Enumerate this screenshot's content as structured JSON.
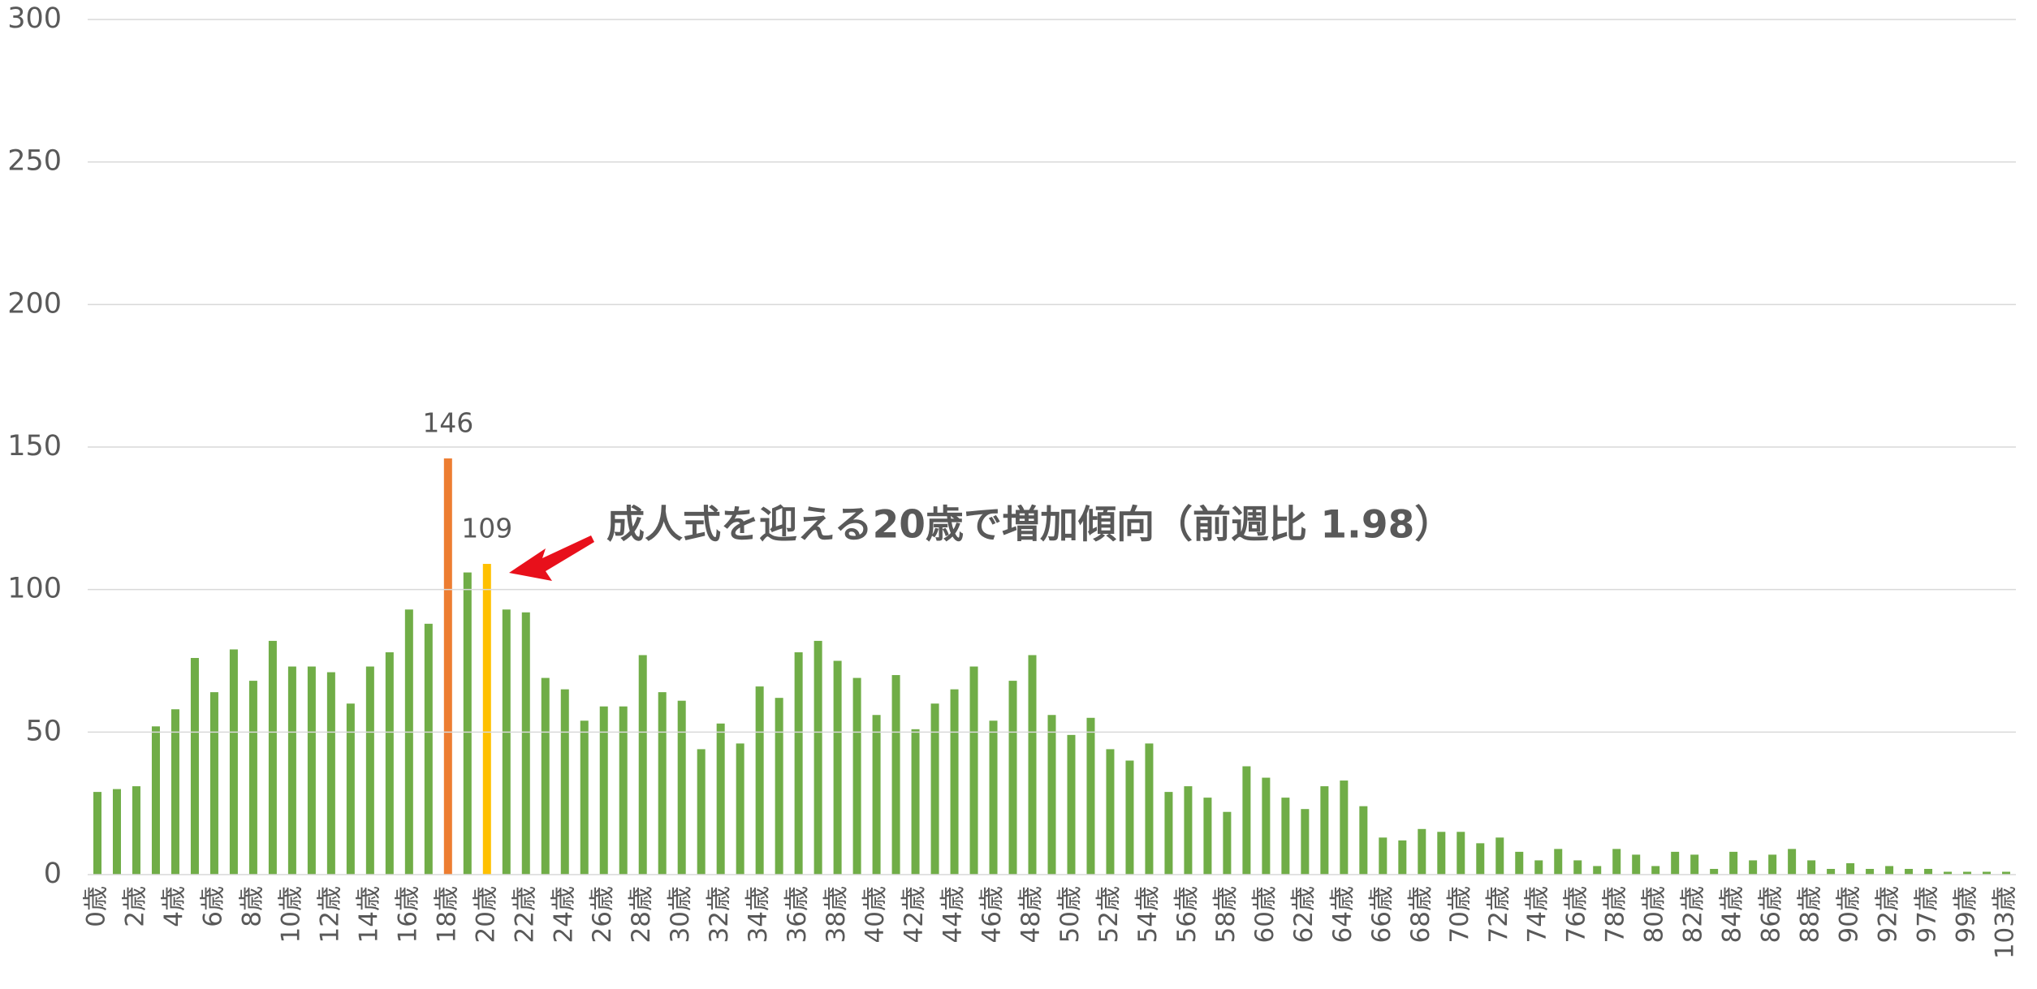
{
  "chart_data": {
    "type": "bar",
    "annotation": "成人式を迎える20歳で増加傾向（前週比 1.98）",
    "categories": [
      "0歳",
      null,
      "2歳",
      null,
      "4歳",
      null,
      "6歳",
      null,
      "8歳",
      null,
      "10歳",
      null,
      "12歳",
      null,
      "14歳",
      null,
      "16歳",
      null,
      "18歳",
      null,
      "20歳",
      null,
      "22歳",
      null,
      "24歳",
      null,
      "26歳",
      null,
      "28歳",
      null,
      "30歳",
      null,
      "32歳",
      null,
      "34歳",
      null,
      "36歳",
      null,
      "38歳",
      null,
      "40歳",
      null,
      "42歳",
      null,
      "44歳",
      null,
      "46歳",
      null,
      "48歳",
      null,
      "50歳",
      null,
      "52歳",
      null,
      "54歳",
      null,
      "56歳",
      null,
      "58歳",
      null,
      "60歳",
      null,
      "62歳",
      null,
      "64歳",
      null,
      "66歳",
      null,
      "68歳",
      null,
      "70歳",
      null,
      "72歳",
      null,
      "74歳",
      null,
      "76歳",
      null,
      "78歳",
      null,
      "80歳",
      null,
      "82歳",
      null,
      "84歳",
      null,
      "86歳",
      null,
      "88歳",
      null,
      "90歳",
      null,
      "92歳",
      null,
      "97歳",
      null,
      "99歳",
      null,
      "103歳"
    ],
    "values": [
      29,
      30,
      31,
      52,
      58,
      76,
      64,
      79,
      68,
      82,
      73,
      73,
      71,
      60,
      73,
      78,
      93,
      88,
      146,
      106,
      109,
      93,
      92,
      69,
      65,
      54,
      59,
      59,
      77,
      64,
      61,
      44,
      53,
      46,
      66,
      62,
      78,
      82,
      75,
      69,
      56,
      70,
      51,
      60,
      65,
      73,
      54,
      68,
      77,
      56,
      49,
      55,
      44,
      40,
      46,
      29,
      31,
      27,
      22,
      38,
      34,
      27,
      23,
      31,
      33,
      24,
      13,
      12,
      16,
      15,
      15,
      11,
      13,
      8,
      5,
      9,
      5,
      3,
      9,
      7,
      3,
      8,
      7,
      2,
      8,
      5,
      7,
      9,
      5,
      2,
      4,
      2,
      3,
      2,
      2,
      1,
      1,
      1,
      1
    ],
    "value_labels": [
      null,
      null,
      null,
      null,
      null,
      null,
      null,
      null,
      null,
      null,
      null,
      null,
      null,
      null,
      null,
      null,
      null,
      null,
      "146",
      null,
      "109",
      null,
      null,
      null,
      null,
      null,
      null,
      null,
      null,
      null,
      null,
      null,
      null,
      null,
      null,
      null,
      null,
      null,
      null,
      null,
      null,
      null,
      null,
      null,
      null,
      null,
      null,
      null,
      null,
      null,
      null,
      null,
      null,
      null,
      null,
      null,
      null,
      null,
      null,
      null,
      null,
      null,
      null,
      null,
      null,
      null,
      null,
      null,
      null,
      null,
      null,
      null,
      null,
      null,
      null,
      null,
      null,
      null,
      null,
      null,
      null,
      null,
      null,
      null,
      null,
      null,
      null,
      null,
      null,
      null,
      null,
      null,
      null,
      null,
      null,
      null,
      null,
      null,
      null
    ],
    "color": "#70ad47",
    "colors": [
      "#70ad47",
      "#70ad47",
      "#70ad47",
      "#70ad47",
      "#70ad47",
      "#70ad47",
      "#70ad47",
      "#70ad47",
      "#70ad47",
      "#70ad47",
      "#70ad47",
      "#70ad47",
      "#70ad47",
      "#70ad47",
      "#70ad47",
      "#70ad47",
      "#70ad47",
      "#70ad47",
      "#ed7d31",
      "#70ad47",
      "#ffc000",
      "#70ad47",
      "#70ad47",
      "#70ad47",
      "#70ad47",
      "#70ad47",
      "#70ad47",
      "#70ad47",
      "#70ad47",
      "#70ad47",
      "#70ad47",
      "#70ad47",
      "#70ad47",
      "#70ad47",
      "#70ad47",
      "#70ad47",
      "#70ad47",
      "#70ad47",
      "#70ad47",
      "#70ad47",
      "#70ad47",
      "#70ad47",
      "#70ad47",
      "#70ad47",
      "#70ad47",
      "#70ad47",
      "#70ad47",
      "#70ad47",
      "#70ad47",
      "#70ad47",
      "#70ad47",
      "#70ad47",
      "#70ad47",
      "#70ad47",
      "#70ad47",
      "#70ad47",
      "#70ad47",
      "#70ad47",
      "#70ad47",
      "#70ad47",
      "#70ad47",
      "#70ad47",
      "#70ad47",
      "#70ad47",
      "#70ad47",
      "#70ad47",
      "#70ad47",
      "#70ad47",
      "#70ad47",
      "#70ad47",
      "#70ad47",
      "#70ad47",
      "#70ad47",
      "#70ad47",
      "#70ad47",
      "#70ad47",
      "#70ad47",
      "#70ad47",
      "#70ad47",
      "#70ad47",
      "#70ad47",
      "#70ad47",
      "#70ad47",
      "#70ad47",
      "#70ad47",
      "#70ad47",
      "#70ad47",
      "#70ad47",
      "#70ad47",
      "#70ad47",
      "#70ad47",
      "#70ad47",
      "#70ad47",
      "#70ad47",
      "#70ad47",
      "#70ad47",
      "#70ad47",
      "#70ad47",
      "#70ad47"
    ],
    "ylim": [
      0,
      300
    ],
    "yticks": [
      0,
      50,
      100,
      150,
      200,
      250,
      300
    ],
    "grid": true
  }
}
